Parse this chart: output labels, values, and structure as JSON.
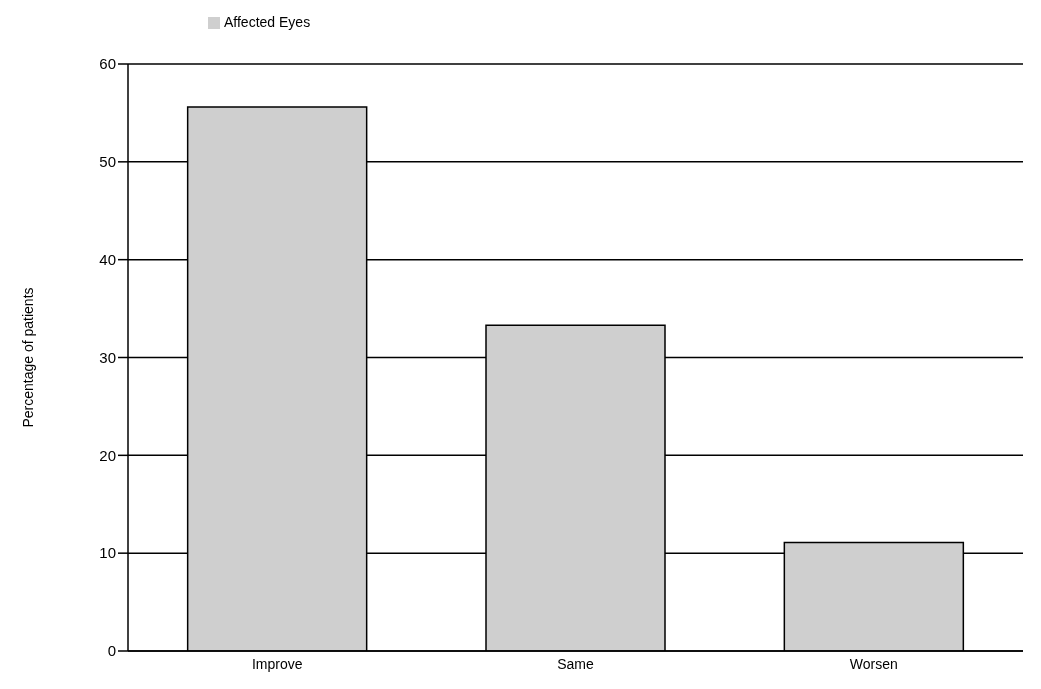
{
  "chart_data": {
    "type": "bar",
    "ylabel": "Percentage of patients",
    "categories": [
      "Improve",
      "Same",
      "Worsen"
    ],
    "series": [
      {
        "name": "Affected Eyes",
        "color": "#cfcfcf",
        "values": [
          55.6,
          33.3,
          11.1
        ]
      }
    ],
    "ylim": [
      0,
      60
    ],
    "yticks": [
      0,
      10,
      20,
      30,
      40,
      50,
      60
    ],
    "grid": "y",
    "legend": "top left"
  }
}
